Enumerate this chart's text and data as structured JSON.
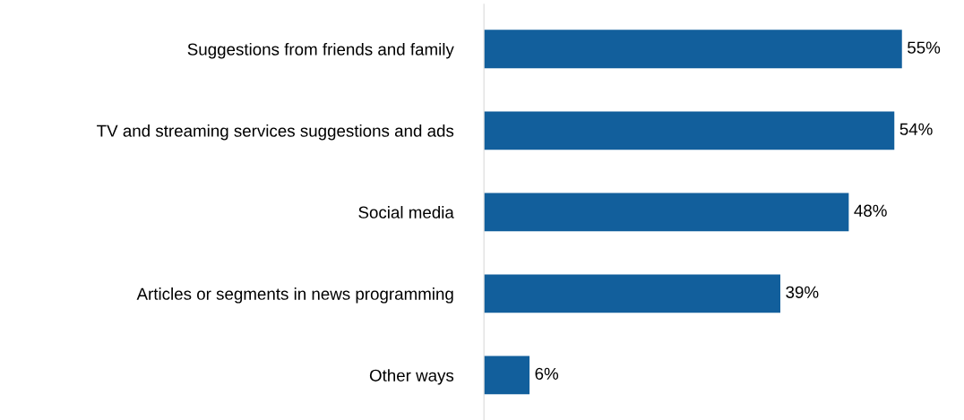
{
  "chart_data": {
    "type": "bar",
    "orientation": "horizontal",
    "categories": [
      "Suggestions from friends and family",
      "TV and streaming services suggestions and ads",
      "Social media",
      "Articles or segments in news programming",
      "Other ways"
    ],
    "values": [
      55,
      54,
      48,
      39,
      6
    ],
    "value_labels": [
      "55%",
      "54%",
      "48%",
      "39%",
      "6%"
    ],
    "color": "#125f9c",
    "grid": false,
    "legend": false
  }
}
